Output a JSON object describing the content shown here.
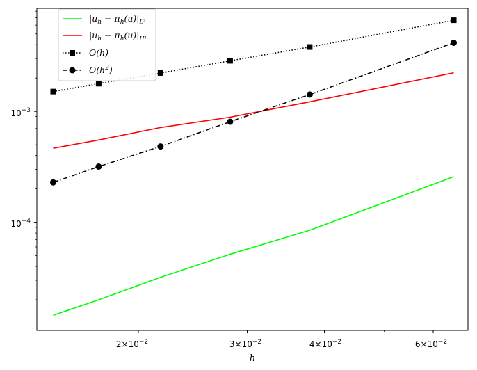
{
  "chart_data": {
    "type": "line",
    "xscale": "log",
    "yscale": "log",
    "xlabel": "h",
    "ylabel": "",
    "title": "",
    "xlim": [
      0.0137,
      0.0683
    ],
    "ylim": [
      1.06e-05,
      0.0085
    ],
    "grid": false,
    "legend_position": "upper-left",
    "x_tick_labels": [
      "2×10⁻²",
      "3×10⁻²",
      "4×10⁻²",
      "6×10⁻²"
    ],
    "y_tick_labels": [
      "10⁻⁴",
      "10⁻³"
    ],
    "x": [
      0.01456,
      0.01725,
      0.02172,
      0.02815,
      0.03787,
      0.06477
    ],
    "series": [
      {
        "name": "|u_h − π_h(u)|_{L²}",
        "color": "#00ff00",
        "linestyle": "solid",
        "marker": "none",
        "values": [
          1.45e-05,
          2e-05,
          3.19e-05,
          5.15e-05,
          8.48e-05,
          0.000258
        ]
      },
      {
        "name": "|u_h − π_h(u)|_{H¹}",
        "color": "#ff0000",
        "linestyle": "solid",
        "marker": "none",
        "values": [
          0.000465,
          0.000552,
          0.000715,
          0.000887,
          0.00122,
          0.00223
        ]
      },
      {
        "name": "O(h)",
        "color": "#000000",
        "linestyle": "dotted",
        "marker": "square",
        "values": [
          0.00151,
          0.00178,
          0.00222,
          0.00286,
          0.00381,
          0.00664
        ]
      },
      {
        "name": "O(h²)",
        "color": "#000000",
        "linestyle": "dashdot",
        "marker": "circle",
        "values": [
          0.000229,
          0.000318,
          0.000483,
          0.000807,
          0.00142,
          0.00416
        ]
      }
    ]
  }
}
